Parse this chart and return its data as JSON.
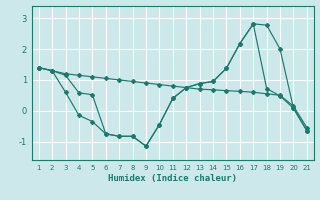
{
  "xlabel": "Humidex (Indice chaleur)",
  "bg_color": "#cce8ea",
  "grid_color": "#ffffff",
  "line_color": "#1a7a6e",
  "xlim": [
    0.5,
    21.5
  ],
  "ylim": [
    -1.6,
    3.4
  ],
  "xticks": [
    1,
    2,
    3,
    4,
    5,
    6,
    7,
    8,
    9,
    10,
    11,
    12,
    13,
    14,
    15,
    16,
    17,
    18,
    19,
    20,
    21
  ],
  "yticks": [
    -1,
    0,
    1,
    2,
    3
  ],
  "line1_x": [
    1,
    2,
    3,
    4,
    5,
    6,
    7,
    8,
    9,
    10,
    11,
    12,
    13,
    14,
    15,
    16,
    17,
    18,
    19,
    20,
    21
  ],
  "line1_y": [
    1.4,
    1.3,
    1.2,
    1.15,
    1.1,
    1.05,
    1.0,
    0.95,
    0.9,
    0.85,
    0.8,
    0.75,
    0.7,
    0.68,
    0.65,
    0.63,
    0.6,
    0.55,
    0.5,
    0.15,
    -0.55
  ],
  "line2_x": [
    1,
    2,
    3,
    4,
    5,
    6,
    7,
    8,
    9,
    10,
    11,
    12,
    13,
    14,
    15,
    16,
    17,
    18,
    19,
    20,
    21
  ],
  "line2_y": [
    1.4,
    1.3,
    0.6,
    -0.15,
    -0.35,
    -0.75,
    -0.83,
    -0.83,
    -1.15,
    -0.45,
    0.4,
    0.75,
    0.88,
    0.95,
    1.38,
    2.18,
    2.82,
    2.78,
    2.0,
    0.08,
    -0.65
  ],
  "line3_x": [
    1,
    2,
    3,
    4,
    5,
    6,
    7,
    8,
    9,
    10,
    11,
    12,
    13,
    14,
    15,
    16,
    17,
    18,
    19,
    20,
    21
  ],
  "line3_y": [
    1.4,
    1.3,
    1.15,
    0.58,
    0.52,
    -0.75,
    -0.83,
    -0.83,
    -1.15,
    -0.45,
    0.4,
    0.75,
    0.88,
    0.95,
    1.38,
    2.18,
    2.82,
    0.72,
    0.48,
    0.08,
    -0.65
  ]
}
